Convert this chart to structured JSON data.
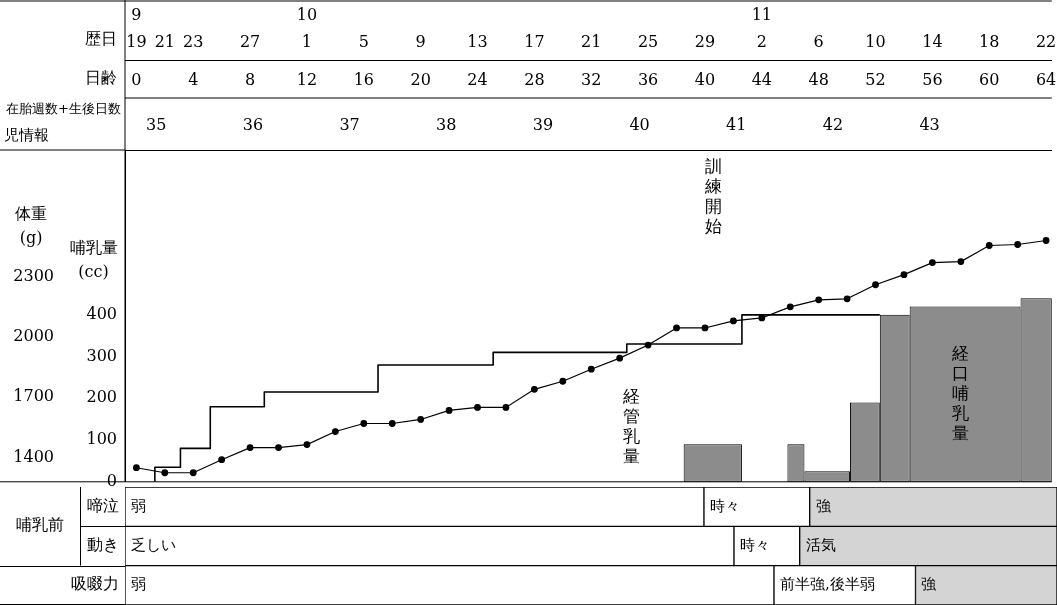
{
  "chart_data": [
    {
      "type": "line",
      "xlabel": "日齢",
      "x2label": "歴日",
      "ylabel": "体重 (g)",
      "y2label": "哺乳量 (cc)",
      "annotations": [
        "在胎週数+生後日数",
        "児情報",
        "35",
        "36",
        "37",
        "38",
        "39",
        "40",
        "41",
        "42",
        "43",
        "訓練開始",
        "9",
        "10",
        "11"
      ],
      "xlim": [
        -0.8,
        64.4
      ],
      "xticks": [
        0,
        4,
        8,
        12,
        16,
        20,
        24,
        28,
        32,
        36,
        40,
        44,
        48,
        52,
        56,
        60,
        64
      ],
      "x2lim": [
        "--09-18T04:48",
        "--11-22T09:36"
      ],
      "x2ticks": [
        {
          "value": "--09-19",
          "label": "19"
        },
        {
          "value": "--09-21",
          "label": "21"
        },
        {
          "value": "--09-23",
          "label": "23"
        },
        {
          "value": "--09-27",
          "label": "27"
        },
        {
          "value": "--10-01",
          "label": "1"
        },
        {
          "value": "--10-05",
          "label": "5"
        },
        {
          "value": "--10-09",
          "label": "9"
        },
        {
          "value": "--10-13",
          "label": "13"
        },
        {
          "value": "--10-17",
          "label": "17"
        },
        {
          "value": "--10-21",
          "label": "21"
        },
        {
          "value": "--10-25",
          "label": "25"
        },
        {
          "value": "--10-29",
          "label": "29"
        },
        {
          "value": "--11-02",
          "label": "2"
        },
        {
          "value": "--11-06",
          "label": "6"
        },
        {
          "value": "--11-10",
          "label": "10"
        },
        {
          "value": "--11-14",
          "label": "14"
        },
        {
          "value": "--11-18",
          "label": "18"
        },
        {
          "value": "--11-22",
          "label": "22"
        }
      ],
      "ylim": [
        1280,
        2930
      ],
      "yticks": [
        1400,
        1700,
        2000,
        2300
      ],
      "y2lim": [
        0,
        795
      ],
      "y2ticks": [
        0,
        100,
        200,
        300,
        400
      ],
      "series": [
        {
          "type": "line",
          "color": "#000000",
          "marker": "circle",
          "x": [
            0,
            2,
            4,
            6,
            8,
            10,
            12,
            14,
            16,
            18,
            20,
            22,
            24,
            26,
            28,
            30,
            32,
            34,
            36,
            38,
            40,
            42,
            44,
            46,
            48,
            50,
            52,
            54,
            56,
            58,
            60,
            62,
            64
          ],
          "values": [
            1350,
            1325,
            1325,
            1390,
            1450,
            1450,
            1465,
            1530,
            1570,
            1570,
            1590,
            1635,
            1650,
            1650,
            1740,
            1780,
            1840,
            1895,
            1960,
            2045,
            2045,
            2080,
            2095,
            2150,
            2185,
            2190,
            2260,
            2310,
            2370,
            2375,
            2455,
            2460,
            2480
          ]
        },
        {
          "type": "step",
          "name": "経管乳量",
          "axis": "y2",
          "color": "#000000",
          "x": [
            1.3,
            1.3,
            3.1,
            5.2,
            9.0,
            17.0,
            25.1,
            34.5,
            42.6,
            52.3
          ],
          "values": [
            0,
            35,
            80,
            180,
            215,
            280,
            310,
            330,
            400,
            400
          ]
        },
        {
          "type": "histogram",
          "name": "経口哺乳量",
          "axis": "y2",
          "color": "#8c8c8c",
          "bins": [
            38.5,
            42.6,
            45.8,
            47.0,
            50.2,
            52.3,
            54.4,
            62.2,
            64.4
          ],
          "values": [
            90,
            null,
            90,
            25,
            190,
            400,
            420,
            440
          ]
        }
      ]
    },
    {
      "type": "bar",
      "orientation": "horizontal",
      "categories": [
        "啼泣",
        "動き",
        "吸啜力"
      ],
      "ylabel": "哺乳前",
      "xlim": [
        -0.8,
        64.4
      ],
      "tick_labels": "y",
      "series": [
        {
          "color": "#ffffff",
          "base": [
            -0.8,
            -0.8,
            -0.8
          ],
          "values": [
            40.5,
            42.6,
            45.4
          ],
          "value_labels": [
            "弱",
            "乏しい",
            "弱"
          ]
        },
        {
          "color": "#ffffff",
          "base": [
            39.7,
            41.8,
            44.6
          ],
          "values": [
            7.4,
            4.6,
            9.9
          ],
          "value_labels": [
            "時々",
            "時々",
            "前半強,後半弱"
          ]
        },
        {
          "color": "#d4d4d4",
          "base": [
            47.1,
            46.4,
            54.5
          ],
          "values": [
            17.3,
            18.0,
            9.9
          ],
          "value_labels": [
            "強",
            "活気",
            "強"
          ]
        }
      ]
    }
  ]
}
